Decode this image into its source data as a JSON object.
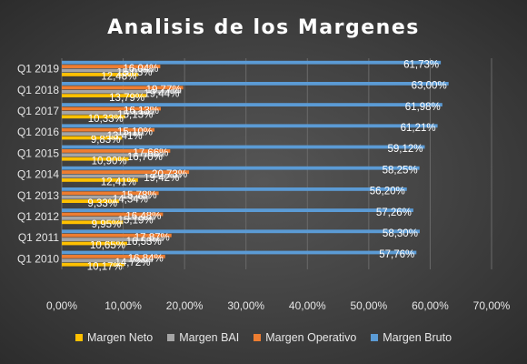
{
  "chart_data": {
    "type": "bar",
    "orientation": "horizontal",
    "title": "Analisis de los Margenes",
    "xlabel": "",
    "ylabel": "",
    "xlim": [
      0,
      70
    ],
    "x_ticks": [
      "0,00%",
      "10,00%",
      "20,00%",
      "30,00%",
      "40,00%",
      "50,00%",
      "60,00%",
      "70,00%"
    ],
    "categories": [
      "Q1 2010",
      "Q1 2011",
      "Q1 2012",
      "Q1 2013",
      "Q1 2014",
      "Q1 2015",
      "Q1 2016",
      "Q1 2017",
      "Q1 2018",
      "Q1 2019"
    ],
    "series": [
      {
        "name": "Margen Neto",
        "color": "#ffc000",
        "values": [
          10.17,
          10.65,
          9.95,
          9.33,
          12.41,
          10.9,
          9.83,
          10.33,
          13.79,
          12.48
        ],
        "labels": [
          "10,17%",
          "10,65%",
          "9,95%",
          "9,33%",
          "12,41%",
          "10,90%",
          "9,83%",
          "10,33%",
          "13,79%",
          "12,48%"
        ]
      },
      {
        "name": "Margen BAI",
        "color": "#a5a5a5",
        "values": [
          14.72,
          16.53,
          15.19,
          14.34,
          19.42,
          16.7,
          13.41,
          15.13,
          19.44,
          15.03
        ],
        "labels": [
          "14,72%",
          "16,53%",
          "15,19%",
          "14,34%",
          "19,42%",
          "16,70%",
          "13,41%",
          "15,13%",
          "19,44%",
          "15,03%"
        ]
      },
      {
        "name": "Margen Operativo",
        "color": "#ed7d31",
        "values": [
          16.84,
          17.87,
          16.48,
          15.78,
          20.73,
          17.66,
          15.1,
          16.13,
          19.77,
          16.04
        ],
        "labels": [
          "16,84%",
          "17,87%",
          "16,48%",
          "15,78%",
          "20,73%",
          "17,66%",
          "15,10%",
          "16,13%",
          "19,77%",
          "16,04%"
        ]
      },
      {
        "name": "Margen Bruto",
        "color": "#5b9bd5",
        "values": [
          57.76,
          58.3,
          57.26,
          56.2,
          58.25,
          59.12,
          61.21,
          61.98,
          63.0,
          61.73
        ],
        "labels": [
          "57,76%",
          "58,30%",
          "57,26%",
          "56,20%",
          "58,25%",
          "59,12%",
          "61,21%",
          "61,98%",
          "63,00%",
          "61,73%"
        ]
      }
    ],
    "grid": true,
    "legend_position": "bottom"
  }
}
